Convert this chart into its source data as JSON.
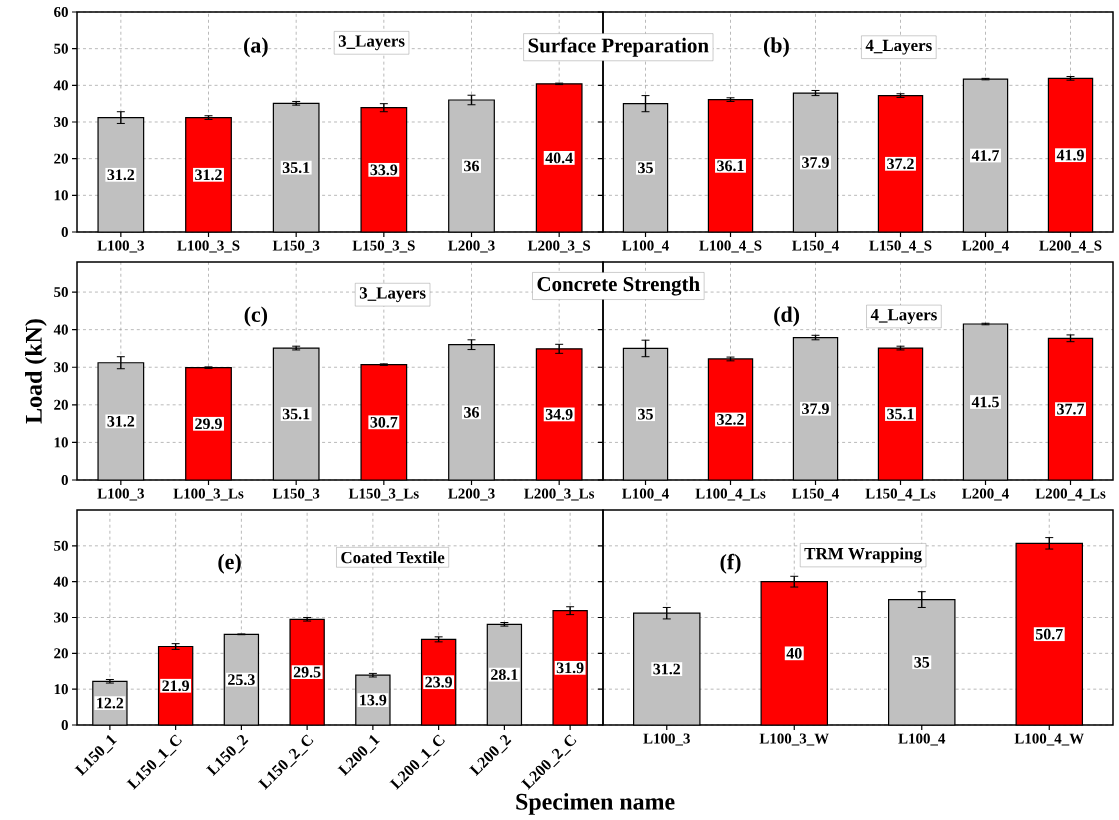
{
  "chart_data": [
    {
      "type": "bar",
      "categories": [
        "L100_3",
        "L100_3_S",
        "L150_3",
        "L150_3_S",
        "L200_3",
        "L200_3_S"
      ],
      "values": [
        31.2,
        31.2,
        35.1,
        33.9,
        36,
        40.4
      ],
      "errors": [
        1.6,
        0.5,
        0.5,
        1.1,
        1.3,
        0.2
      ],
      "colors": [
        "#c0c0c0",
        "#ff0000",
        "#c0c0c0",
        "#ff0000",
        "#c0c0c0",
        "#ff0000"
      ],
      "data_labels": true,
      "ylim": [
        0,
        60
      ],
      "yticks": [
        0,
        10,
        20,
        30,
        40,
        50,
        60
      ],
      "grid": true,
      "annotations": [
        "(a)",
        "3_Layers"
      ]
    },
    {
      "type": "bar",
      "categories": [
        "L100_4",
        "L100_4_S",
        "L150_4",
        "L150_4_S",
        "L200_4",
        "L200_4_S"
      ],
      "values": [
        35,
        36.1,
        37.9,
        37.2,
        41.7,
        41.9
      ],
      "errors": [
        2.2,
        0.5,
        0.7,
        0.5,
        0.2,
        0.5
      ],
      "colors": [
        "#c0c0c0",
        "#ff0000",
        "#c0c0c0",
        "#ff0000",
        "#c0c0c0",
        "#ff0000"
      ],
      "data_labels": true,
      "ylim": [
        0,
        60
      ],
      "yticks": [
        0,
        10,
        20,
        30,
        40,
        50,
        60
      ],
      "grid": true,
      "tick_labels": "x",
      "annotations": [
        "(b)",
        "4_Layers",
        "Surface Preparation"
      ]
    },
    {
      "type": "bar",
      "categories": [
        "L100_3",
        "L100_3_Ls",
        "L150_3",
        "L150_3_Ls",
        "L200_3",
        "L200_3_Ls"
      ],
      "values": [
        31.2,
        29.9,
        35.1,
        30.7,
        36,
        34.9
      ],
      "errors": [
        1.6,
        0.2,
        0.5,
        0.2,
        1.3,
        1.2
      ],
      "colors": [
        "#c0c0c0",
        "#ff0000",
        "#c0c0c0",
        "#ff0000",
        "#c0c0c0",
        "#ff0000"
      ],
      "data_labels": true,
      "ylim": [
        0,
        58
      ],
      "yticks": [
        0,
        10,
        20,
        30,
        40,
        50
      ],
      "grid": true,
      "ylabel": "Load (kN)",
      "annotations": [
        "(c)",
        "3_Layers"
      ]
    },
    {
      "type": "bar",
      "categories": [
        "L100_4",
        "L100_4_Ls",
        "L150_4",
        "L150_4_Ls",
        "L200_4",
        "L200_4_Ls"
      ],
      "values": [
        35,
        32.2,
        37.9,
        35.1,
        41.5,
        37.7
      ],
      "errors": [
        2.2,
        0.5,
        0.6,
        0.5,
        0.2,
        0.9
      ],
      "colors": [
        "#c0c0c0",
        "#ff0000",
        "#c0c0c0",
        "#ff0000",
        "#c0c0c0",
        "#ff0000"
      ],
      "data_labels": true,
      "ylim": [
        0,
        58
      ],
      "yticks": [
        0,
        10,
        20,
        30,
        40,
        50
      ],
      "grid": true,
      "tick_labels": "x",
      "annotations": [
        "(d)",
        "4_Layers",
        "Concrete Strength"
      ]
    },
    {
      "type": "bar",
      "categories": [
        "L150_1",
        "L150_1_C",
        "L150_2",
        "L150_2_C",
        "L200_1",
        "L200_1_C",
        "L200_2",
        "L200_2_C"
      ],
      "values": [
        12.2,
        21.9,
        25.3,
        29.5,
        13.9,
        23.9,
        28.1,
        31.9
      ],
      "errors": [
        0.5,
        0.8,
        0.1,
        0.5,
        0.5,
        0.7,
        0.5,
        1.1
      ],
      "colors": [
        "#c0c0c0",
        "#ff0000",
        "#c0c0c0",
        "#ff0000",
        "#c0c0c0",
        "#ff0000",
        "#c0c0c0",
        "#ff0000"
      ],
      "data_labels": true,
      "ylim": [
        0,
        60
      ],
      "yticks": [
        0,
        10,
        20,
        30,
        40,
        50
      ],
      "grid": true,
      "xlabel": "Specimen name",
      "annotations": [
        "(e)",
        "Coated Textile"
      ]
    },
    {
      "type": "bar",
      "categories": [
        "L100_3",
        "L100_3_W",
        "L100_4",
        "L100_4_W"
      ],
      "values": [
        31.2,
        40,
        35,
        50.7
      ],
      "errors": [
        1.6,
        1.5,
        2.2,
        1.6
      ],
      "colors": [
        "#c0c0c0",
        "#ff0000",
        "#c0c0c0",
        "#ff0000"
      ],
      "data_labels": true,
      "ylim": [
        0,
        60
      ],
      "yticks": [
        0,
        10,
        20,
        30,
        40,
        50
      ],
      "grid": true,
      "tick_labels": "x",
      "annotations": [
        "(f)",
        "TRM Wrapping"
      ]
    }
  ]
}
